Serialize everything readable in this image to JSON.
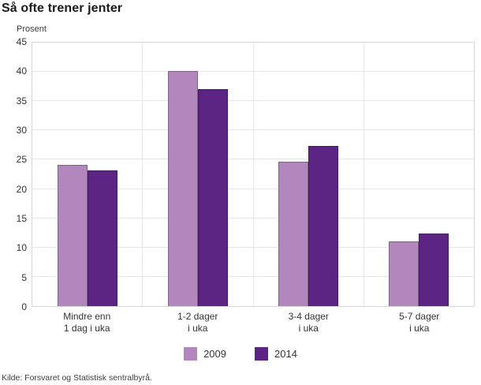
{
  "title": "Så ofte trener jenter",
  "source": "Kilde: Forsvaret og Statistisk sentralbyrå.",
  "chart_data": {
    "type": "bar",
    "title": "Så ofte trener jenter",
    "ylabel": "Prosent",
    "xlabel": "",
    "categories": [
      "Mindre enn\n1 dag i uka",
      "1-2 dager\ni uka",
      "3-4 dager\ni uka",
      "5-7 dager\ni uka"
    ],
    "series": [
      {
        "name": "2009",
        "color": "#b287bd",
        "values": [
          24.1,
          40.2,
          24.7,
          11
        ]
      },
      {
        "name": "2014",
        "color": "#5c2583",
        "values": [
          23.2,
          37,
          27.4,
          12.4
        ]
      }
    ],
    "ylim": [
      0,
      45
    ],
    "ytick_step": 5,
    "grid": true,
    "legend_position": "bottom"
  },
  "colors": {
    "grid": "#e7e7e7",
    "plot_border": "#d6d6d6",
    "series_2009": "#b287bd",
    "series_2014": "#5c2583",
    "text": "#333333"
  }
}
